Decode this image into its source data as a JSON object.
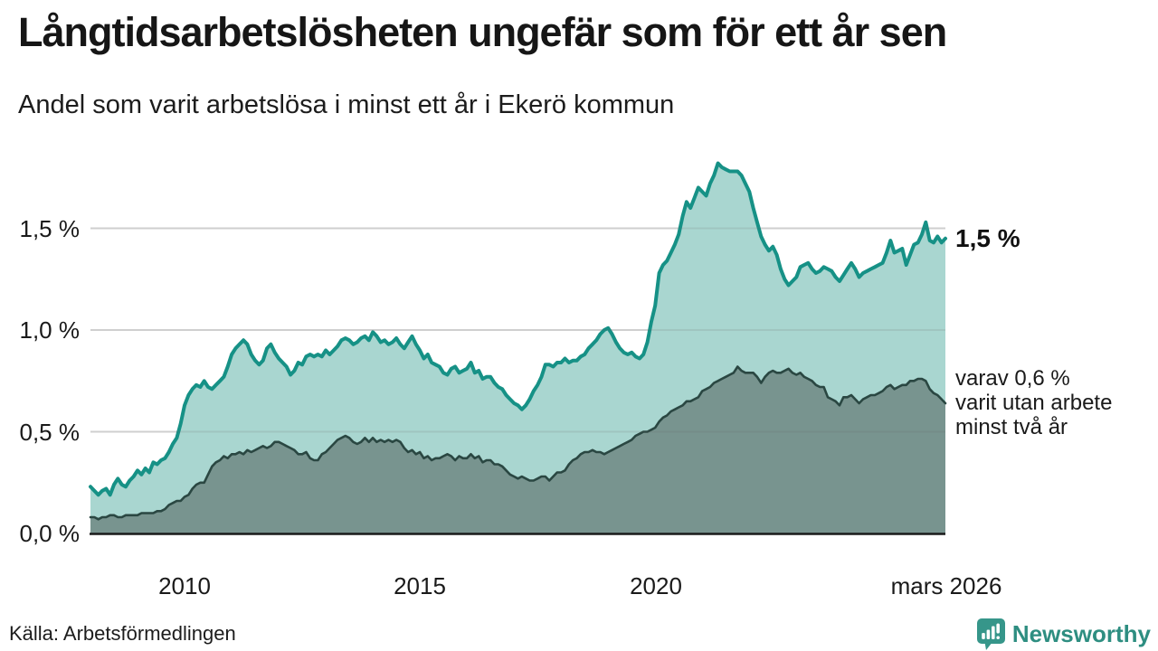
{
  "title": "Långtidsarbetslösheten ungefär som för ett år sen",
  "subtitle": "Andel som varit arbetslösa i minst ett år i Ekerö kommun",
  "colors": {
    "accent_teal_line": "#169186",
    "accent_teal_fill": "#a9d6d0",
    "dark_series_line": "#2a4742",
    "dark_series_fill": "#78948f",
    "axis_line": "#1a1a1a",
    "gridline": "#e1e1e1",
    "text": "#1a1a1a",
    "brand_teal": "#2e8e81"
  },
  "chart_data": {
    "type": "area",
    "title": "Långtidsarbetslösheten ungefär som för ett år sen",
    "subtitle": "Andel som varit arbetslösa i minst ett år i Ekerö kommun",
    "unit": "%",
    "x_start_year": 2008,
    "x_end_label": "mars 2026",
    "points_per_year": 12,
    "ylim": [
      0,
      1.9
    ],
    "grid": "horizontal",
    "legend_position": "none",
    "y_ticks": [
      {
        "label": "1,5 %",
        "value": 1.5
      },
      {
        "label": "1,0 %",
        "value": 1.0
      },
      {
        "label": "0,5 %",
        "value": 0.5
      },
      {
        "label": "0,0 %",
        "value": 0.0
      }
    ],
    "x_ticks": [
      {
        "label": "2010",
        "year": 2010
      },
      {
        "label": "2015",
        "year": 2015
      },
      {
        "label": "2020",
        "year": 2020
      },
      {
        "label": "mars 2026",
        "year": 2026.17
      }
    ],
    "series": [
      {
        "name": "Andel arbetslösa minst ett år",
        "line_color": "#169186",
        "fill_color": "#a9d6d0",
        "line_width": 4,
        "last_value": 1.45,
        "values": [
          0.23,
          0.21,
          0.19,
          0.21,
          0.22,
          0.19,
          0.24,
          0.27,
          0.24,
          0.23,
          0.26,
          0.28,
          0.31,
          0.29,
          0.32,
          0.3,
          0.35,
          0.34,
          0.36,
          0.37,
          0.4,
          0.44,
          0.47,
          0.54,
          0.63,
          0.68,
          0.71,
          0.73,
          0.72,
          0.75,
          0.72,
          0.71,
          0.73,
          0.75,
          0.77,
          0.82,
          0.88,
          0.91,
          0.93,
          0.95,
          0.93,
          0.88,
          0.85,
          0.83,
          0.85,
          0.91,
          0.93,
          0.89,
          0.86,
          0.84,
          0.82,
          0.78,
          0.8,
          0.84,
          0.83,
          0.87,
          0.88,
          0.87,
          0.88,
          0.87,
          0.9,
          0.88,
          0.9,
          0.92,
          0.95,
          0.96,
          0.95,
          0.93,
          0.94,
          0.96,
          0.97,
          0.95,
          0.99,
          0.97,
          0.94,
          0.95,
          0.93,
          0.94,
          0.96,
          0.93,
          0.91,
          0.94,
          0.97,
          0.93,
          0.9,
          0.86,
          0.88,
          0.84,
          0.83,
          0.82,
          0.79,
          0.78,
          0.81,
          0.82,
          0.79,
          0.8,
          0.81,
          0.84,
          0.79,
          0.8,
          0.76,
          0.77,
          0.77,
          0.74,
          0.72,
          0.71,
          0.68,
          0.66,
          0.64,
          0.63,
          0.61,
          0.63,
          0.66,
          0.7,
          0.73,
          0.77,
          0.83,
          0.83,
          0.82,
          0.84,
          0.84,
          0.86,
          0.84,
          0.85,
          0.85,
          0.87,
          0.88,
          0.91,
          0.93,
          0.95,
          0.98,
          1.0,
          1.01,
          0.98,
          0.94,
          0.91,
          0.89,
          0.88,
          0.89,
          0.87,
          0.86,
          0.88,
          0.94,
          1.04,
          1.12,
          1.28,
          1.32,
          1.34,
          1.38,
          1.42,
          1.47,
          1.56,
          1.63,
          1.6,
          1.65,
          1.7,
          1.68,
          1.66,
          1.72,
          1.76,
          1.82,
          1.8,
          1.79,
          1.78,
          1.78,
          1.78,
          1.76,
          1.72,
          1.68,
          1.6,
          1.53,
          1.46,
          1.42,
          1.39,
          1.41,
          1.37,
          1.3,
          1.25,
          1.22,
          1.24,
          1.26,
          1.31,
          1.32,
          1.33,
          1.3,
          1.28,
          1.29,
          1.31,
          1.3,
          1.29,
          1.26,
          1.24,
          1.27,
          1.3,
          1.33,
          1.3,
          1.26,
          1.28,
          1.29,
          1.3,
          1.31,
          1.32,
          1.33,
          1.38,
          1.44,
          1.38,
          1.39,
          1.4,
          1.32,
          1.37,
          1.42,
          1.43,
          1.47,
          1.53,
          1.44,
          1.43,
          1.46,
          1.43,
          1.45
        ]
      },
      {
        "name": "Andel arbetslösa minst två år",
        "line_color": "#2a4742",
        "fill_color": "#78948f",
        "line_width": 2.6,
        "last_value": 0.64,
        "values": [
          0.08,
          0.08,
          0.07,
          0.08,
          0.08,
          0.09,
          0.09,
          0.08,
          0.08,
          0.09,
          0.09,
          0.09,
          0.09,
          0.1,
          0.1,
          0.1,
          0.1,
          0.11,
          0.11,
          0.12,
          0.14,
          0.15,
          0.16,
          0.16,
          0.18,
          0.19,
          0.22,
          0.24,
          0.25,
          0.25,
          0.29,
          0.33,
          0.35,
          0.36,
          0.38,
          0.37,
          0.39,
          0.39,
          0.4,
          0.39,
          0.41,
          0.4,
          0.41,
          0.42,
          0.43,
          0.42,
          0.43,
          0.45,
          0.45,
          0.44,
          0.43,
          0.42,
          0.41,
          0.39,
          0.39,
          0.4,
          0.37,
          0.36,
          0.36,
          0.39,
          0.4,
          0.42,
          0.44,
          0.46,
          0.47,
          0.48,
          0.47,
          0.45,
          0.44,
          0.45,
          0.47,
          0.45,
          0.47,
          0.45,
          0.46,
          0.45,
          0.46,
          0.45,
          0.46,
          0.45,
          0.42,
          0.4,
          0.41,
          0.39,
          0.4,
          0.37,
          0.38,
          0.36,
          0.37,
          0.37,
          0.38,
          0.39,
          0.38,
          0.36,
          0.38,
          0.37,
          0.37,
          0.39,
          0.37,
          0.38,
          0.35,
          0.36,
          0.36,
          0.34,
          0.34,
          0.33,
          0.31,
          0.29,
          0.28,
          0.27,
          0.28,
          0.27,
          0.26,
          0.26,
          0.27,
          0.28,
          0.28,
          0.26,
          0.28,
          0.3,
          0.3,
          0.31,
          0.34,
          0.36,
          0.37,
          0.39,
          0.4,
          0.4,
          0.41,
          0.4,
          0.4,
          0.39,
          0.4,
          0.41,
          0.42,
          0.43,
          0.44,
          0.45,
          0.46,
          0.48,
          0.49,
          0.5,
          0.5,
          0.51,
          0.52,
          0.55,
          0.57,
          0.58,
          0.6,
          0.61,
          0.62,
          0.63,
          0.65,
          0.65,
          0.66,
          0.67,
          0.7,
          0.71,
          0.72,
          0.74,
          0.75,
          0.76,
          0.77,
          0.78,
          0.79,
          0.82,
          0.8,
          0.79,
          0.79,
          0.79,
          0.77,
          0.74,
          0.77,
          0.79,
          0.8,
          0.79,
          0.79,
          0.8,
          0.81,
          0.79,
          0.78,
          0.79,
          0.77,
          0.76,
          0.75,
          0.73,
          0.72,
          0.72,
          0.67,
          0.66,
          0.65,
          0.63,
          0.67,
          0.67,
          0.68,
          0.66,
          0.64,
          0.66,
          0.67,
          0.68,
          0.68,
          0.69,
          0.7,
          0.72,
          0.73,
          0.71,
          0.72,
          0.73,
          0.73,
          0.75,
          0.75,
          0.76,
          0.76,
          0.75,
          0.71,
          0.69,
          0.68,
          0.66,
          0.64
        ]
      }
    ],
    "annotations": {
      "end_label_primary": "1,5 %",
      "end_label_secondary_lines": [
        "varav 0,6 %",
        "varit utan arbete",
        "minst två år"
      ]
    }
  },
  "footer": {
    "source": "Källa: Arbetsförmedlingen",
    "brand": "Newsworthy"
  }
}
